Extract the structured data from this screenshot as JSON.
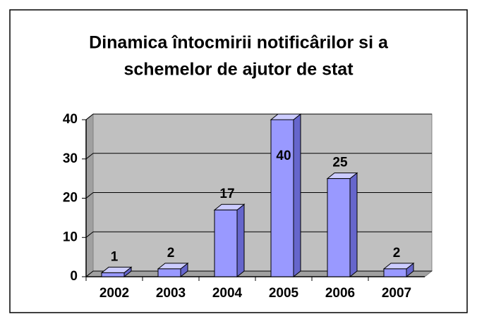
{
  "chart_data": {
    "type": "bar3d",
    "title": [
      "Dinamica întocmirii notificârilor si a",
      "schemelor de ajutor de stat"
    ],
    "categories": [
      "2002",
      "2003",
      "2004",
      "2005",
      "2006",
      "2007"
    ],
    "values": [
      1,
      2,
      17,
      40,
      25,
      2
    ],
    "color": "#9999ff",
    "ylim": [
      0,
      40
    ],
    "yticks": [
      0,
      10,
      20,
      30,
      40
    ],
    "grid": true
  }
}
